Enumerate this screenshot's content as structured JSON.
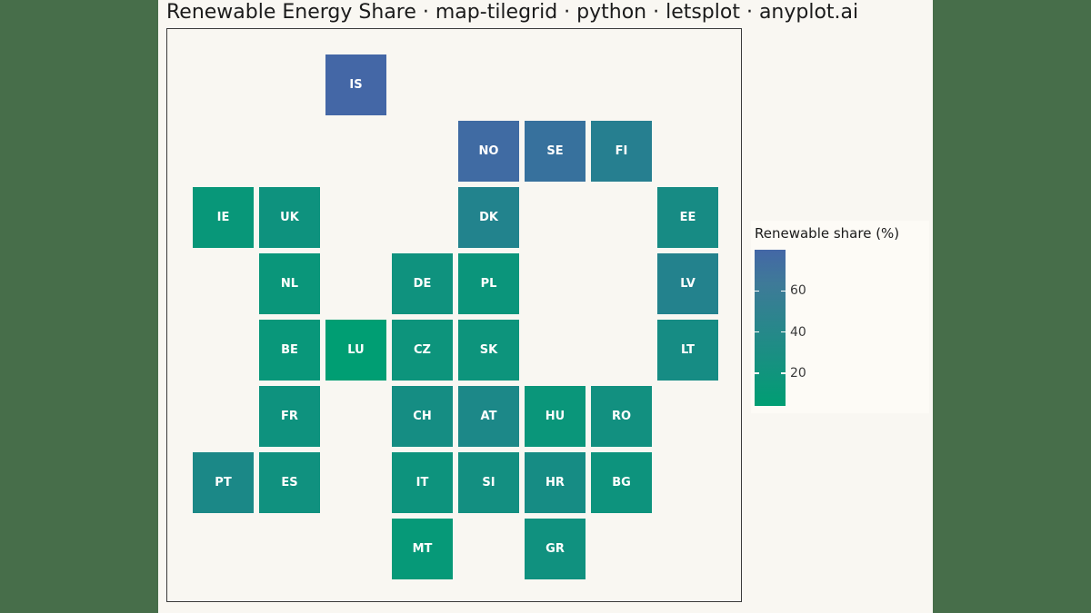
{
  "chart_data": {
    "type": "heatmap",
    "title": "Renewable Energy Share · map-tilegrid · python · letsplot · anyplot.ai",
    "colorbar": {
      "title": "Renewable share (%)",
      "min": 4,
      "max": 80,
      "ticks": [
        20,
        40,
        60
      ],
      "color_low": "#009e73",
      "color_high": "#4467a6"
    },
    "tiles": [
      {
        "code": "IS",
        "row": 0,
        "col": 2,
        "value": 80
      },
      {
        "code": "NO",
        "row": 1,
        "col": 4,
        "value": 75
      },
      {
        "code": "SE",
        "row": 1,
        "col": 5,
        "value": 66
      },
      {
        "code": "FI",
        "row": 1,
        "col": 6,
        "value": 47
      },
      {
        "code": "IE",
        "row": 2,
        "col": 0,
        "value": 13
      },
      {
        "code": "UK",
        "row": 2,
        "col": 1,
        "value": 20
      },
      {
        "code": "DK",
        "row": 2,
        "col": 4,
        "value": 42
      },
      {
        "code": "EE",
        "row": 2,
        "col": 7,
        "value": 30
      },
      {
        "code": "NL",
        "row": 3,
        "col": 1,
        "value": 15
      },
      {
        "code": "DE",
        "row": 3,
        "col": 3,
        "value": 21
      },
      {
        "code": "PL",
        "row": 3,
        "col": 4,
        "value": 16
      },
      {
        "code": "LV",
        "row": 3,
        "col": 7,
        "value": 43
      },
      {
        "code": "BE",
        "row": 4,
        "col": 1,
        "value": 14
      },
      {
        "code": "LU",
        "row": 4,
        "col": 2,
        "value": 4
      },
      {
        "code": "CZ",
        "row": 4,
        "col": 3,
        "value": 18
      },
      {
        "code": "SK",
        "row": 4,
        "col": 4,
        "value": 18
      },
      {
        "code": "LT",
        "row": 4,
        "col": 7,
        "value": 29
      },
      {
        "code": "FR",
        "row": 5,
        "col": 1,
        "value": 20
      },
      {
        "code": "CH",
        "row": 5,
        "col": 3,
        "value": 28
      },
      {
        "code": "AT",
        "row": 5,
        "col": 4,
        "value": 35
      },
      {
        "code": "HU",
        "row": 5,
        "col": 5,
        "value": 15
      },
      {
        "code": "RO",
        "row": 5,
        "col": 6,
        "value": 24
      },
      {
        "code": "PT",
        "row": 6,
        "col": 0,
        "value": 34
      },
      {
        "code": "ES",
        "row": 6,
        "col": 1,
        "value": 22
      },
      {
        "code": "IT",
        "row": 6,
        "col": 3,
        "value": 19
      },
      {
        "code": "SI",
        "row": 6,
        "col": 4,
        "value": 25
      },
      {
        "code": "HR",
        "row": 6,
        "col": 5,
        "value": 29
      },
      {
        "code": "BG",
        "row": 6,
        "col": 6,
        "value": 19
      },
      {
        "code": "MT",
        "row": 7,
        "col": 3,
        "value": 11
      },
      {
        "code": "GR",
        "row": 7,
        "col": 5,
        "value": 22
      }
    ]
  }
}
